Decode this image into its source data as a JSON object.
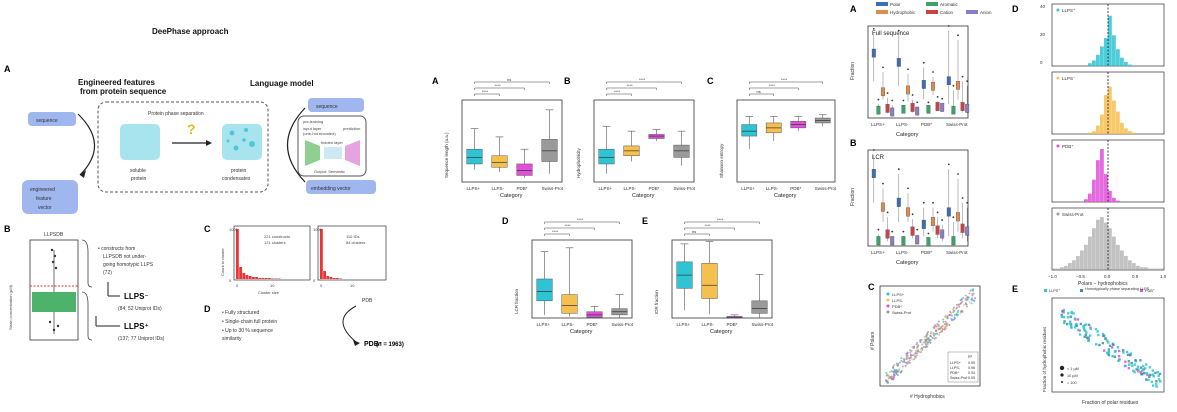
{
  "figure_left": {
    "title": "DeePhase approach",
    "panel_a": {
      "letter": "A",
      "engineered_title": "Engineered features",
      "engineered_title2": "from protein sequence",
      "lm_title": "Language model",
      "sequence_left": "sequence",
      "sequence_right": "sequence",
      "phase_sep": "Protein phase separation",
      "soluble": "soluble",
      "protein": "protein",
      "protein2": "protein",
      "condensates": "condensates",
      "question": "?",
      "engineered_vec1": "engineered",
      "engineered_vec2": "feature",
      "engineered_vec3": "vector",
      "pretraining": "pre-training",
      "input_layer": "input layer",
      "input_layer2": "(one-hot encoded)",
      "prediction": "prediction",
      "hidden_layer": "hidden layer",
      "output": "Output: Semantic",
      "embedding_vector": "embedding vector"
    },
    "panel_b": {
      "letter": "B",
      "db": "LLPSDB",
      "ylabel": "Strain concentration (µM)",
      "bullet": "• constructs from LLPSDB not undergoing homotypic LLPS (72)",
      "llps_minus": "LLPS⁻",
      "llps_minus_sub": "(84; 52 Uniprot IDs)",
      "llps_plus": "LLPS⁺",
      "llps_plus_sub": "(137; 77 Uniprot IDs)"
    },
    "panel_c": {
      "letter": "C",
      "left_ann1": "221 constructs",
      "left_ann2": "121 clusters",
      "right_ann1": "110 IDs",
      "right_ann2": "84 clusters",
      "ylabel": "Count in cluster",
      "xlabel": "Cluster size",
      "t0": "0",
      "t10": "10",
      "t1000": "1000",
      "t0b": "0",
      "t1000b": "1000",
      "t0c": "0",
      "t10c": "10"
    },
    "panel_d": {
      "letter": "D",
      "b1": "• Fully structured",
      "b2": "• Single-chain full protein",
      "b3": "• Up to 30 % sequence",
      "b3b": "   similarity",
      "pdb": "PDB",
      "pdb_out": "PDB⁻",
      "pdb_n": "(n = 1963)"
    }
  },
  "figure_mid": {
    "categories": [
      "LLPS+",
      "LLPS-",
      "PDB*",
      "Swiss-Prot"
    ],
    "xlabel": "Category",
    "panel_a": {
      "letter": "A",
      "ylabel": "Sequence length (a.a.)",
      "sig_top": "ns",
      "sig": "****"
    },
    "panel_b": {
      "letter": "B",
      "ylabel": "Hydrophobicity",
      "sig": "****"
    },
    "panel_c": {
      "letter": "C",
      "ylabel": "Shannon entropy",
      "sig": "****",
      "sig_ns": "ns"
    },
    "panel_d": {
      "letter": "D",
      "ylabel": "LCR fraction",
      "sig": "****"
    },
    "panel_e": {
      "letter": "E",
      "ylabel": "IDR fraction",
      "sig": "****",
      "sig_ns": "ns"
    }
  },
  "figure_right": {
    "panel_a": {
      "letter": "A",
      "legend": [
        "Polar",
        "Aromatic",
        "Hydrophobic",
        "Cation",
        "Anion"
      ],
      "title": "Full sequence",
      "ylabel": "Fraction",
      "xlabel": "Category",
      "categories": [
        "LLPS+",
        "LLPS-",
        "PDB*",
        "Swiss-Prot"
      ]
    },
    "panel_b": {
      "letter": "B",
      "title": "LCR",
      "ylabel": "Fraction",
      "xlabel": "Category",
      "categories": [
        "LLPS+",
        "LLPS-",
        "PDB*",
        "Swiss-Prot"
      ]
    },
    "panel_c": {
      "letter": "C",
      "legend": [
        "LLPS+",
        "LLPS-",
        "PDB*",
        "Swiss-Prot"
      ],
      "ylabel": "# Polars",
      "xlabel": "# Hydrophobics",
      "table_head": "R²",
      "table_rows": [
        [
          "LLPS+",
          "0.95"
        ],
        [
          "LLPS-",
          "0.96"
        ],
        [
          "PDB*",
          "0.93"
        ],
        [
          "Swiss-Prot",
          "0.95"
        ]
      ]
    },
    "panel_d": {
      "letter": "D",
      "labels": [
        "LLPS⁺",
        "LLPS⁻",
        "PDB⁺",
        "Swiss-Prot"
      ],
      "xlabel": "Polars − hydrophobics",
      "yticks": [
        "40",
        "20",
        "0"
      ],
      "xticks": [
        "−1.0",
        "−0.5",
        "0.0",
        "0.5",
        "1.0"
      ]
    },
    "panel_e": {
      "letter": "E",
      "legend": [
        "LLPS⁺",
        "Homotypically phase separating LLPS",
        "PDB⁺"
      ],
      "ylabel": "Fraction of hydrophobic residues",
      "xlabel": "Fraction of polar residues",
      "size_legend": [
        "< 1 µM",
        "10 µM",
        "> 100"
      ]
    }
  },
  "colors": {
    "llps_plus": "#2ec4d4",
    "llps_minus": "#f6c04f",
    "pdb": "#e04fd9",
    "swiss": "#9a9a9a",
    "polar": "#3d6fb5",
    "aromatic": "#3aa36a",
    "hydrophobic": "#e08a50",
    "cation": "#c84444",
    "anion": "#8a7fc4",
    "accent_blue": "#9fb6ee",
    "green_box": "#4db36b"
  }
}
